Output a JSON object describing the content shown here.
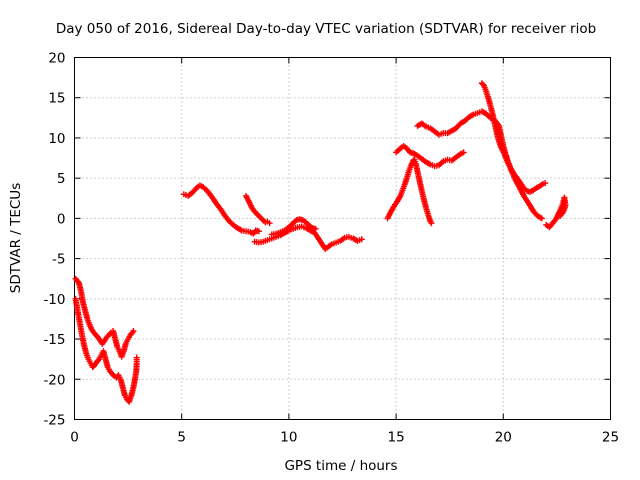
{
  "chart_data": {
    "type": "scatter",
    "title": "Day 050 of 2016, Sidereal Day-to-day VTEC variation (SDTVAR) for receiver riob",
    "xlabel": "GPS time / hours",
    "ylabel": "SDTVAR / TECUs",
    "xlim": [
      0,
      25
    ],
    "ylim": [
      -25,
      20
    ],
    "xticks": [
      0,
      5,
      10,
      15,
      20,
      25
    ],
    "yticks": [
      -25,
      -20,
      -15,
      -10,
      -5,
      0,
      5,
      10,
      15,
      20
    ],
    "grid": true,
    "marker": "+",
    "color": "#ff0000",
    "series": [
      {
        "segments": [
          [
            [
              0.05,
              -7.5
            ],
            [
              0.2,
              -8
            ],
            [
              0.3,
              -9
            ],
            [
              0.4,
              -10.5
            ],
            [
              0.5,
              -11.5
            ],
            [
              0.6,
              -12.5
            ],
            [
              0.7,
              -13.2
            ],
            [
              0.8,
              -13.8
            ],
            [
              0.9,
              -14.2
            ],
            [
              1.0,
              -14.5
            ],
            [
              1.1,
              -14.8
            ],
            [
              1.2,
              -15.2
            ],
            [
              1.3,
              -15.6
            ],
            [
              1.4,
              -15.2
            ],
            [
              1.5,
              -14.8
            ],
            [
              1.6,
              -14.5
            ],
            [
              1.7,
              -14.2
            ],
            [
              1.8,
              -14.0
            ],
            [
              1.9,
              -15.0
            ],
            [
              2.0,
              -16.0
            ],
            [
              2.1,
              -16.5
            ],
            [
              2.2,
              -17.2
            ],
            [
              2.3,
              -16.5
            ],
            [
              2.4,
              -15.5
            ],
            [
              2.5,
              -15.0
            ],
            [
              2.6,
              -14.5
            ],
            [
              2.7,
              -14.2
            ],
            [
              2.75,
              -14.0
            ]
          ],
          [
            [
              0.05,
              -10
            ],
            [
              0.15,
              -11.5
            ],
            [
              0.25,
              -13
            ],
            [
              0.35,
              -14.5
            ],
            [
              0.45,
              -15.8
            ],
            [
              0.55,
              -16.8
            ],
            [
              0.65,
              -17.5
            ],
            [
              0.75,
              -18.0
            ],
            [
              0.85,
              -18.5
            ],
            [
              0.95,
              -18.2
            ],
            [
              1.05,
              -17.8
            ],
            [
              1.15,
              -17.5
            ],
            [
              1.25,
              -17.0
            ],
            [
              1.35,
              -16.5
            ],
            [
              1.45,
              -17.5
            ],
            [
              1.55,
              -18.5
            ],
            [
              1.65,
              -19.0
            ],
            [
              1.75,
              -19.3
            ],
            [
              1.85,
              -19.6
            ],
            [
              1.95,
              -19.8
            ],
            [
              2.05,
              -19.5
            ],
            [
              2.15,
              -20.0
            ],
            [
              2.25,
              -21.0
            ],
            [
              2.35,
              -22.0
            ],
            [
              2.45,
              -22.5
            ],
            [
              2.55,
              -22.8
            ],
            [
              2.65,
              -22.0
            ],
            [
              2.75,
              -21.0
            ],
            [
              2.82,
              -20.0
            ],
            [
              2.88,
              -19.0
            ],
            [
              2.9,
              -18.0
            ],
            [
              2.9,
              -17.3
            ]
          ]
        ]
      },
      {
        "segments": [
          [
            [
              5.1,
              3.0
            ],
            [
              5.3,
              2.8
            ],
            [
              5.5,
              3.2
            ],
            [
              5.7,
              3.8
            ],
            [
              5.85,
              4.1
            ],
            [
              6.0,
              3.9
            ],
            [
              6.2,
              3.4
            ],
            [
              6.4,
              2.7
            ],
            [
              6.6,
              1.9
            ],
            [
              6.8,
              1.2
            ],
            [
              7.0,
              0.4
            ],
            [
              7.2,
              -0.3
            ],
            [
              7.4,
              -0.8
            ],
            [
              7.6,
              -1.2
            ],
            [
              7.8,
              -1.5
            ],
            [
              8.0,
              -1.6
            ],
            [
              8.2,
              -1.7
            ],
            [
              8.35,
              -1.9
            ],
            [
              8.45,
              -1.5
            ],
            [
              8.6,
              -1.6
            ]
          ],
          [
            [
              8.0,
              2.8
            ],
            [
              8.15,
              2.0
            ],
            [
              8.3,
              1.2
            ],
            [
              8.45,
              0.7
            ],
            [
              8.6,
              0.3
            ],
            [
              8.75,
              -0.1
            ],
            [
              8.9,
              -0.5
            ],
            [
              9.0,
              -0.4
            ],
            [
              9.1,
              -0.6
            ]
          ],
          [
            [
              8.4,
              -2.9
            ],
            [
              8.6,
              -3.0
            ],
            [
              8.8,
              -2.9
            ],
            [
              9.0,
              -2.7
            ],
            [
              9.2,
              -2.5
            ],
            [
              9.4,
              -2.3
            ],
            [
              9.6,
              -2.1
            ],
            [
              9.8,
              -1.8
            ],
            [
              10.0,
              -1.5
            ],
            [
              10.2,
              -1.3
            ],
            [
              10.4,
              -1.1
            ],
            [
              10.6,
              -1.0
            ],
            [
              10.8,
              -1.2
            ],
            [
              11.0,
              -1.5
            ],
            [
              11.2,
              -1.8
            ],
            [
              11.4,
              -2.6
            ],
            [
              11.55,
              -3.2
            ],
            [
              11.7,
              -3.8
            ],
            [
              11.85,
              -3.5
            ],
            [
              12.0,
              -3.2
            ],
            [
              12.2,
              -3.0
            ],
            [
              12.4,
              -2.8
            ],
            [
              12.6,
              -2.4
            ],
            [
              12.8,
              -2.3
            ],
            [
              13.0,
              -2.5
            ],
            [
              13.2,
              -2.8
            ],
            [
              13.4,
              -2.6
            ]
          ],
          [
            [
              9.2,
              -2.0
            ],
            [
              9.4,
              -1.9
            ],
            [
              9.6,
              -1.7
            ],
            [
              9.8,
              -1.5
            ],
            [
              10.0,
              -1.1
            ],
            [
              10.2,
              -0.6
            ],
            [
              10.35,
              -0.2
            ],
            [
              10.5,
              -0.1
            ],
            [
              10.65,
              -0.2
            ],
            [
              10.8,
              -0.5
            ],
            [
              10.95,
              -0.9
            ],
            [
              11.1,
              -1.2
            ],
            [
              11.25,
              -1.3
            ]
          ]
        ]
      },
      {
        "segments": [
          [
            [
              14.6,
              0.0
            ],
            [
              14.75,
              0.8
            ],
            [
              14.9,
              1.5
            ],
            [
              15.05,
              2.1
            ],
            [
              15.2,
              2.8
            ],
            [
              15.3,
              3.5
            ],
            [
              15.4,
              4.2
            ],
            [
              15.5,
              5.0
            ],
            [
              15.6,
              5.9
            ],
            [
              15.7,
              6.6
            ],
            [
              15.8,
              7.2
            ],
            [
              15.85,
              7.3
            ],
            [
              15.92,
              6.8
            ],
            [
              16.0,
              5.8
            ],
            [
              16.1,
              4.6
            ],
            [
              16.2,
              3.4
            ],
            [
              16.3,
              2.3
            ],
            [
              16.4,
              1.3
            ],
            [
              16.5,
              0.4
            ],
            [
              16.6,
              -0.4
            ],
            [
              16.65,
              -0.6
            ]
          ],
          [
            [
              15.0,
              8.2
            ],
            [
              15.2,
              8.7
            ],
            [
              15.35,
              9.0
            ],
            [
              15.5,
              8.7
            ],
            [
              15.65,
              8.2
            ],
            [
              15.8,
              8.1
            ],
            [
              16.0,
              7.8
            ],
            [
              16.2,
              7.4
            ],
            [
              16.4,
              7.0
            ],
            [
              16.6,
              6.7
            ],
            [
              16.8,
              6.5
            ],
            [
              17.0,
              6.6
            ],
            [
              17.2,
              7.1
            ],
            [
              17.4,
              7.3
            ],
            [
              17.6,
              7.2
            ],
            [
              17.8,
              7.6
            ],
            [
              18.0,
              8.0
            ],
            [
              18.15,
              8.2
            ]
          ],
          [
            [
              16.0,
              11.5
            ],
            [
              16.2,
              11.8
            ],
            [
              16.4,
              11.4
            ],
            [
              16.6,
              11.2
            ],
            [
              16.8,
              10.8
            ],
            [
              17.0,
              10.4
            ],
            [
              17.2,
              10.6
            ],
            [
              17.4,
              10.6
            ],
            [
              17.6,
              10.9
            ],
            [
              17.8,
              11.2
            ],
            [
              18.0,
              11.8
            ],
            [
              18.2,
              12.1
            ],
            [
              18.4,
              12.6
            ],
            [
              18.6,
              12.9
            ],
            [
              18.8,
              13.1
            ],
            [
              19.0,
              13.3
            ],
            [
              19.2,
              13.0
            ],
            [
              19.4,
              12.5
            ],
            [
              19.6,
              12.2
            ],
            [
              19.8,
              11.5
            ],
            [
              20.0,
              9.0
            ],
            [
              20.2,
              7.2
            ],
            [
              20.4,
              5.8
            ],
            [
              20.6,
              4.6
            ],
            [
              20.8,
              3.6
            ],
            [
              21.0,
              2.6
            ],
            [
              21.2,
              1.8
            ],
            [
              21.4,
              0.9
            ],
            [
              21.6,
              0.3
            ],
            [
              21.8,
              0.0
            ]
          ],
          [
            [
              19.0,
              16.8
            ],
            [
              19.1,
              16.5
            ],
            [
              19.2,
              15.8
            ],
            [
              19.35,
              14.5
            ],
            [
              19.5,
              13.0
            ],
            [
              19.6,
              11.8
            ],
            [
              19.75,
              10.0
            ],
            [
              19.9,
              8.8
            ],
            [
              20.05,
              8.0
            ],
            [
              20.2,
              7.0
            ],
            [
              20.35,
              6.2
            ],
            [
              20.5,
              5.5
            ],
            [
              20.65,
              5.0
            ],
            [
              20.8,
              4.4
            ],
            [
              20.95,
              3.8
            ],
            [
              21.1,
              3.4
            ],
            [
              21.25,
              3.3
            ],
            [
              21.4,
              3.5
            ],
            [
              21.55,
              3.8
            ],
            [
              21.7,
              4.0
            ],
            [
              21.85,
              4.3
            ],
            [
              21.95,
              4.4
            ]
          ],
          [
            [
              22.0,
              -0.8
            ],
            [
              22.15,
              -1.1
            ],
            [
              22.3,
              -0.6
            ],
            [
              22.45,
              -0.1
            ],
            [
              22.6,
              0.7
            ],
            [
              22.7,
              1.3
            ],
            [
              22.8,
              2.0
            ],
            [
              22.85,
              2.6
            ],
            [
              22.9,
              1.6
            ],
            [
              22.8,
              0.8
            ],
            [
              22.65,
              0.3
            ]
          ]
        ]
      }
    ]
  }
}
